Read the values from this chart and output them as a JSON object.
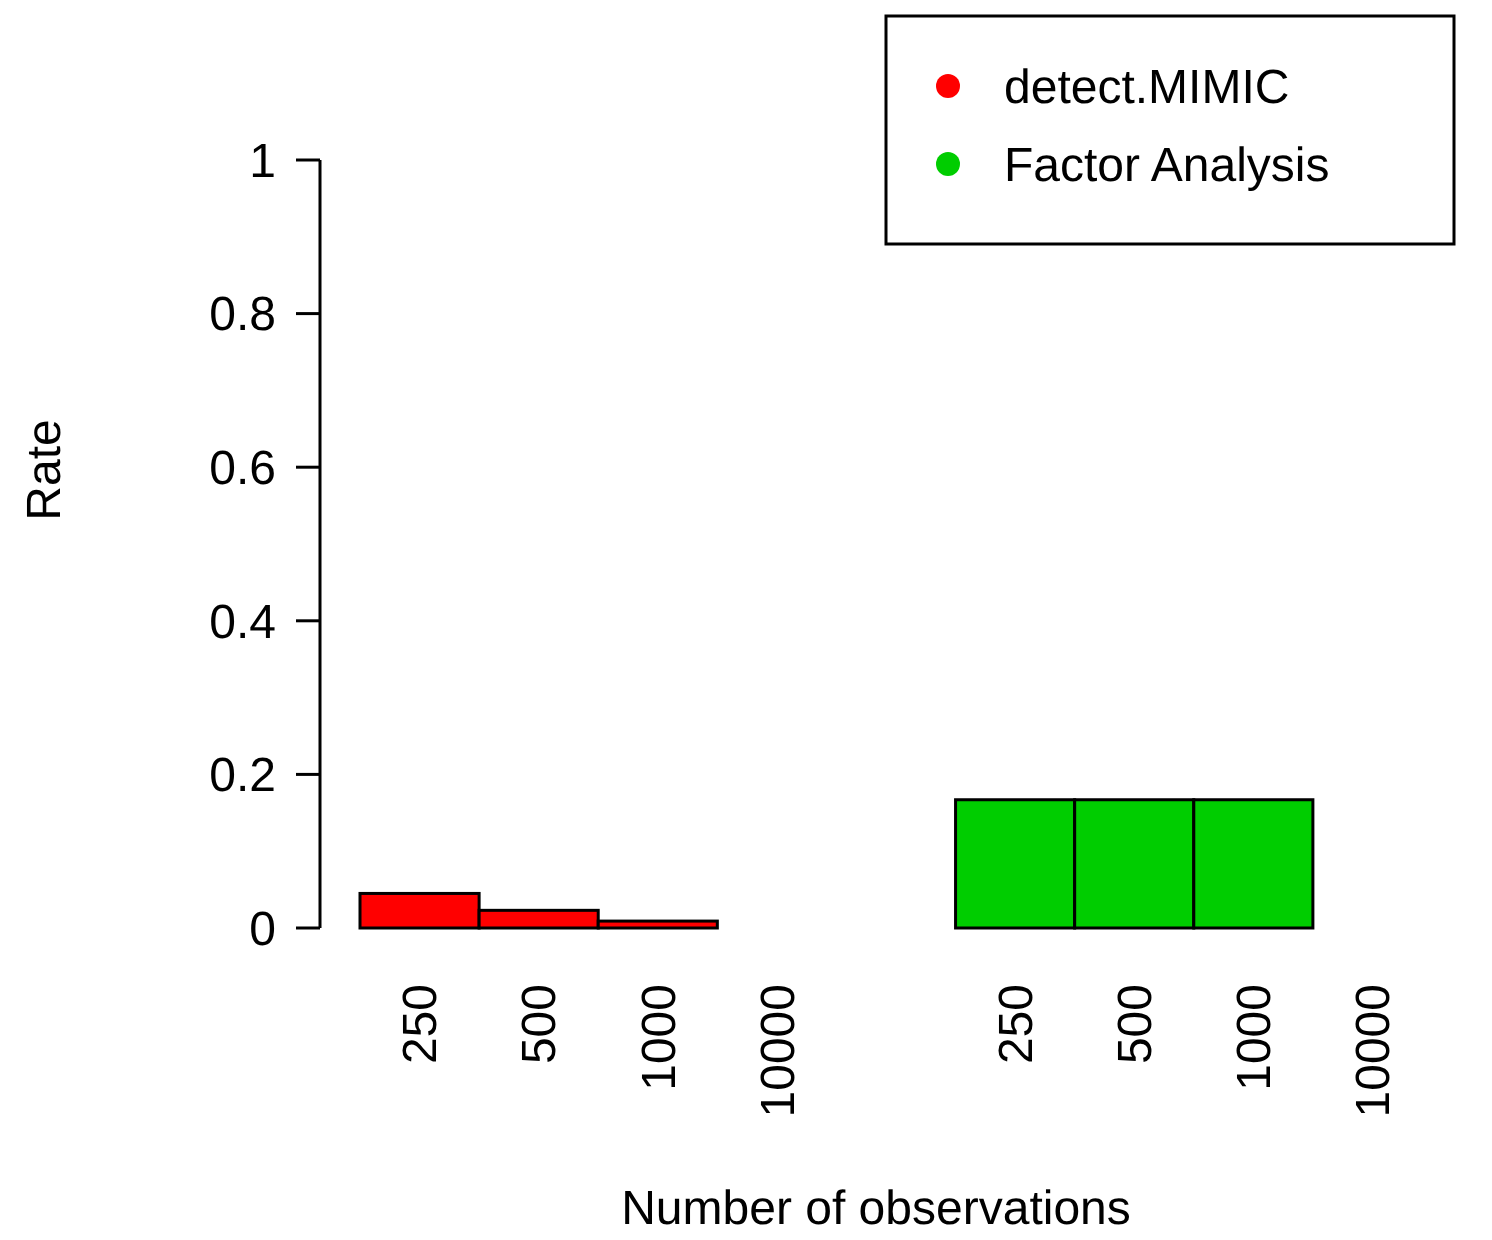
{
  "chart_data": {
    "type": "bar",
    "xlabel": "Number of observations",
    "ylabel": "Rate",
    "categories": [
      "250",
      "500",
      "1000",
      "10000",
      null,
      "250",
      "500",
      "1000",
      "10000"
    ],
    "series": [
      {
        "name": "detect.MIMIC",
        "color": "#ff0000",
        "values": [
          0.045,
          0.023,
          0.009,
          0,
          null,
          null,
          null,
          null,
          null
        ]
      },
      {
        "name": "Factor Analysis",
        "color": "#00cd00",
        "values": [
          null,
          null,
          null,
          null,
          null,
          0.167,
          0.167,
          0.167,
          0
        ]
      }
    ],
    "ylim": [
      0,
      1
    ],
    "yticks": [
      0,
      0.2,
      0.4,
      0.6,
      0.8,
      1
    ],
    "grid": false,
    "legend": "top right"
  }
}
